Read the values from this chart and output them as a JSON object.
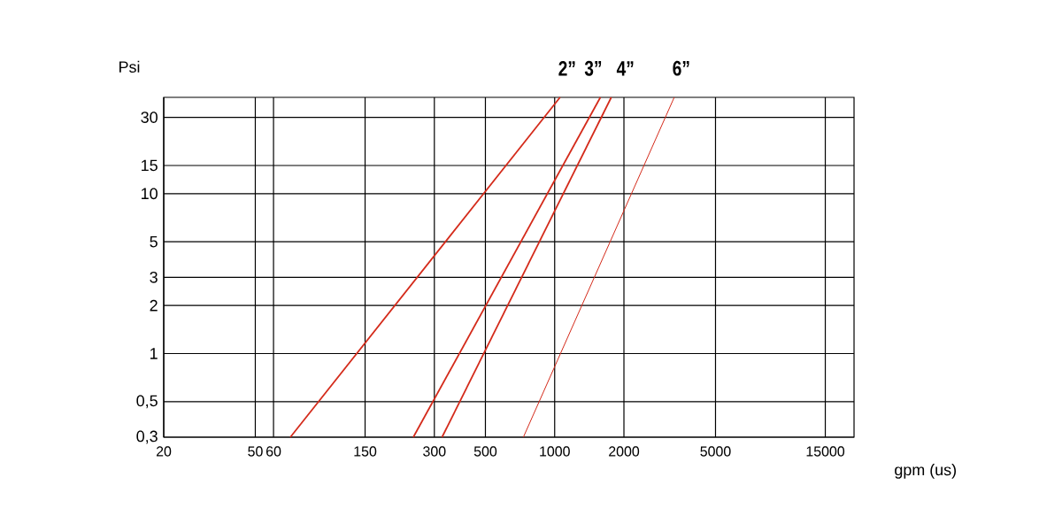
{
  "chart_data": {
    "type": "line",
    "xlabel": "gpm (us)",
    "ylabel": "Psi",
    "log": "xy",
    "grid": true,
    "marker": "none",
    "xlim": [
      20,
      20000
    ],
    "ylim": [
      0.3,
      40
    ],
    "xticks": [
      20,
      50,
      60,
      150,
      300,
      500,
      1000,
      2000,
      5000,
      15000
    ],
    "yticks": [
      {
        "value": 0.3,
        "label": "0,3"
      },
      {
        "value": 0.5,
        "label": "0,5"
      },
      1,
      2,
      3,
      5,
      10,
      15,
      30
    ],
    "series": [
      {
        "name": "2”",
        "color": "#d42a1a",
        "x": [
          71,
          1055
        ],
        "values": [
          0.3,
          40
        ]
      },
      {
        "name": "3”",
        "color": "#d42a1a",
        "x": [
          243,
          1580
        ],
        "values": [
          0.3,
          40
        ]
      },
      {
        "name": "4”",
        "color": "#d42a1a",
        "x": [
          324,
          1762
        ],
        "values": [
          0.3,
          40
        ]
      },
      {
        "name": "6”",
        "color": "#d42a1a",
        "x": [
          731,
          3308
        ],
        "values": [
          0.3,
          40
        ]
      }
    ]
  }
}
